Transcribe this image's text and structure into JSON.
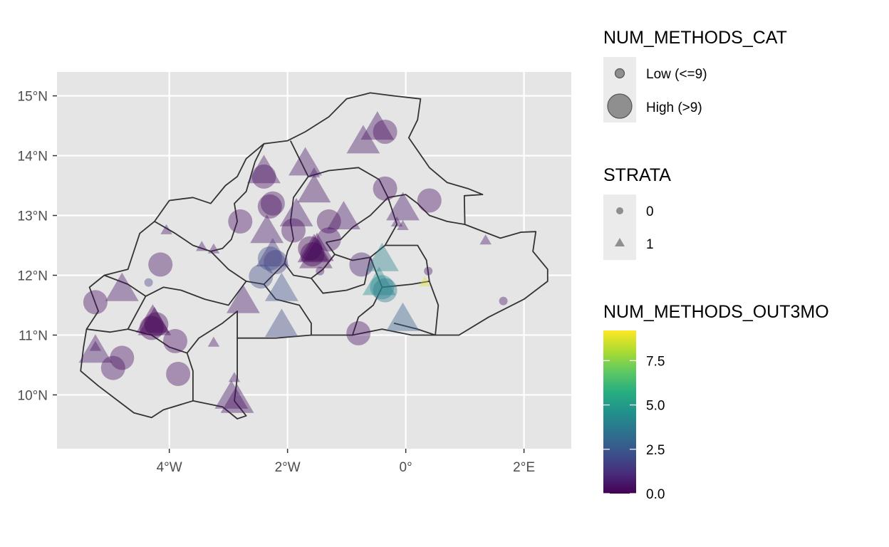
{
  "chart_data": {
    "type": "scatter",
    "panel_bg": "#e5e5e5",
    "grid_color": "#ffffff",
    "country_fill": "#e5e5e5",
    "border_color": "#333333",
    "xlim": [
      -5.9,
      2.8
    ],
    "ylim": [
      9.1,
      15.4
    ],
    "x_ticks": [
      {
        "value": -4,
        "label": "4°W"
      },
      {
        "value": -2,
        "label": "2°W"
      },
      {
        "value": 0,
        "label": "0°"
      },
      {
        "value": 2,
        "label": "2°E"
      }
    ],
    "y_ticks": [
      {
        "value": 10,
        "label": "10°N"
      },
      {
        "value": 11,
        "label": "11°N"
      },
      {
        "value": 12,
        "label": "12°N"
      },
      {
        "value": 13,
        "label": "13°N"
      },
      {
        "value": 14,
        "label": "14°N"
      },
      {
        "value": 15,
        "label": "15°N"
      }
    ],
    "country_outline": [
      [
        -0.6,
        15.05
      ],
      [
        -0.2,
        15.0
      ],
      [
        0.25,
        14.95
      ],
      [
        0.2,
        14.6
      ],
      [
        0.05,
        14.3
      ],
      [
        0.4,
        13.8
      ],
      [
        0.7,
        13.55
      ],
      [
        1.05,
        13.45
      ],
      [
        1.3,
        13.35
      ],
      [
        0.99,
        13.33
      ],
      [
        1.0,
        12.85
      ],
      [
        1.6,
        12.62
      ],
      [
        1.95,
        12.72
      ],
      [
        2.2,
        12.73
      ],
      [
        2.15,
        12.4
      ],
      [
        2.4,
        12.1
      ],
      [
        2.4,
        11.9
      ],
      [
        2.0,
        11.6
      ],
      [
        1.4,
        11.3
      ],
      [
        0.9,
        11.0
      ],
      [
        0.5,
        11.0
      ],
      [
        0.1,
        11.0
      ],
      [
        -0.4,
        11.1
      ],
      [
        -0.9,
        11.0
      ],
      [
        -1.6,
        11.0
      ],
      [
        -2.2,
        10.95
      ],
      [
        -2.85,
        10.95
      ],
      [
        -2.85,
        10.3
      ],
      [
        -2.9,
        9.9
      ],
      [
        -2.7,
        9.65
      ],
      [
        -2.85,
        9.6
      ],
      [
        -3.1,
        9.8
      ],
      [
        -3.6,
        9.9
      ],
      [
        -4.1,
        9.75
      ],
      [
        -4.3,
        9.62
      ],
      [
        -4.6,
        9.7
      ],
      [
        -4.8,
        9.85
      ],
      [
        -5.2,
        10.15
      ],
      [
        -5.5,
        10.4
      ],
      [
        -5.45,
        10.8
      ],
      [
        -5.4,
        11.1
      ],
      [
        -5.2,
        11.4
      ],
      [
        -5.35,
        11.8
      ],
      [
        -5.1,
        12.0
      ],
      [
        -4.7,
        12.1
      ],
      [
        -4.5,
        12.7
      ],
      [
        -4.25,
        12.9
      ],
      [
        -4.0,
        13.25
      ],
      [
        -3.6,
        13.3
      ],
      [
        -3.3,
        13.2
      ],
      [
        -3.05,
        13.5
      ],
      [
        -2.85,
        13.65
      ],
      [
        -2.7,
        13.95
      ],
      [
        -2.4,
        14.2
      ],
      [
        -2.0,
        14.25
      ],
      [
        -1.7,
        14.4
      ],
      [
        -1.3,
        14.65
      ],
      [
        -1.0,
        14.95
      ],
      [
        -0.6,
        15.05
      ]
    ],
    "region_borders": [
      [
        [
          -1.95,
          14.25
        ],
        [
          -1.8,
          13.95
        ],
        [
          -1.65,
          13.65
        ],
        [
          -1.9,
          13.3
        ],
        [
          -1.95,
          12.9
        ],
        [
          -1.9,
          12.6
        ]
      ],
      [
        [
          -2.4,
          14.2
        ],
        [
          -2.55,
          13.9
        ],
        [
          -2.7,
          13.4
        ],
        [
          -2.9,
          13.2
        ],
        [
          -2.85,
          12.9
        ],
        [
          -2.95,
          12.6
        ],
        [
          -3.1,
          12.45
        ],
        [
          -3.3,
          12.4
        ]
      ],
      [
        [
          -1.65,
          13.65
        ],
        [
          -1.3,
          13.75
        ],
        [
          -0.8,
          13.8
        ],
        [
          -0.45,
          13.6
        ],
        [
          -0.3,
          13.3
        ],
        [
          -0.6,
          13.0
        ],
        [
          -0.9,
          12.8
        ],
        [
          -1.1,
          12.6
        ],
        [
          -1.35,
          12.55
        ]
      ],
      [
        [
          -0.3,
          13.3
        ],
        [
          0.0,
          13.35
        ],
        [
          0.2,
          13.2
        ],
        [
          0.4,
          13.0
        ],
        [
          0.7,
          12.9
        ],
        [
          1.0,
          12.85
        ]
      ],
      [
        [
          -0.3,
          13.3
        ],
        [
          -0.15,
          12.85
        ],
        [
          -0.35,
          12.5
        ],
        [
          -0.6,
          12.3
        ],
        [
          -0.9,
          12.25
        ],
        [
          -1.2,
          12.35
        ],
        [
          -1.35,
          12.55
        ]
      ],
      [
        [
          -1.9,
          12.6
        ],
        [
          -2.0,
          12.4
        ],
        [
          -2.05,
          12.2
        ],
        [
          -1.9,
          12.0
        ],
        [
          -1.6,
          11.95
        ],
        [
          -1.4,
          12.1
        ],
        [
          -1.2,
          12.35
        ]
      ],
      [
        [
          -4.25,
          12.9
        ],
        [
          -3.9,
          12.7
        ],
        [
          -3.6,
          12.5
        ],
        [
          -3.3,
          12.4
        ],
        [
          -3.0,
          12.1
        ],
        [
          -2.7,
          11.9
        ],
        [
          -2.4,
          11.85
        ],
        [
          -2.05,
          12.2
        ]
      ],
      [
        [
          -5.1,
          12.0
        ],
        [
          -4.7,
          11.85
        ],
        [
          -4.4,
          11.65
        ],
        [
          -4.1,
          11.8
        ],
        [
          -3.8,
          11.75
        ],
        [
          -3.4,
          11.6
        ],
        [
          -3.0,
          11.5
        ],
        [
          -2.7,
          11.9
        ]
      ],
      [
        [
          -5.4,
          11.1
        ],
        [
          -5.0,
          11.05
        ],
        [
          -4.7,
          11.1
        ],
        [
          -4.4,
          11.65
        ]
      ],
      [
        [
          -4.7,
          11.1
        ],
        [
          -4.3,
          11.0
        ],
        [
          -4.0,
          10.8
        ],
        [
          -3.7,
          10.7
        ],
        [
          -3.6,
          10.4
        ],
        [
          -3.6,
          9.9
        ]
      ],
      [
        [
          -3.7,
          10.7
        ],
        [
          -3.5,
          10.95
        ],
        [
          -3.1,
          11.2
        ],
        [
          -2.85,
          11.4
        ],
        [
          -2.85,
          10.95
        ]
      ],
      [
        [
          -2.4,
          11.85
        ],
        [
          -2.2,
          11.6
        ],
        [
          -1.8,
          11.5
        ],
        [
          -1.6,
          11.2
        ],
        [
          -1.6,
          11.0
        ]
      ],
      [
        [
          -1.6,
          11.95
        ],
        [
          -1.4,
          11.7
        ],
        [
          -1.0,
          11.75
        ],
        [
          -0.7,
          11.85
        ],
        [
          -0.6,
          12.3
        ]
      ],
      [
        [
          -0.9,
          11.0
        ],
        [
          -0.8,
          11.3
        ],
        [
          -0.55,
          11.5
        ],
        [
          -0.4,
          11.8
        ],
        [
          -0.6,
          12.3
        ]
      ],
      [
        [
          -0.4,
          11.8
        ],
        [
          0.1,
          11.85
        ],
        [
          0.4,
          11.9
        ],
        [
          0.55,
          11.5
        ],
        [
          0.5,
          11.0
        ]
      ],
      [
        [
          0.4,
          11.9
        ],
        [
          0.35,
          12.25
        ],
        [
          0.2,
          12.5
        ],
        [
          -0.35,
          12.5
        ]
      ],
      [
        [
          -0.2,
          11.2
        ],
        [
          0.2,
          11.1
        ],
        [
          0.5,
          11.0
        ]
      ]
    ],
    "points": [
      {
        "x": -0.35,
        "y": 14.4,
        "size": "high",
        "shape": "circle",
        "value": 0.3
      },
      {
        "x": -0.72,
        "y": 14.22,
        "size": "high",
        "shape": "triangle",
        "value": 0.5
      },
      {
        "x": -0.48,
        "y": 14.45,
        "size": "high",
        "shape": "triangle",
        "value": 0.4
      },
      {
        "x": -1.7,
        "y": 13.85,
        "size": "high",
        "shape": "triangle",
        "value": 0.5
      },
      {
        "x": -1.55,
        "y": 13.7,
        "size": "low",
        "shape": "triangle",
        "value": 0.6
      },
      {
        "x": -2.4,
        "y": 13.65,
        "size": "high",
        "shape": "circle",
        "value": 0.3
      },
      {
        "x": -2.4,
        "y": 13.72,
        "size": "high",
        "shape": "triangle",
        "value": 0.5
      },
      {
        "x": -1.55,
        "y": 13.4,
        "size": "high",
        "shape": "triangle",
        "value": 0.4
      },
      {
        "x": -0.35,
        "y": 13.45,
        "size": "high",
        "shape": "circle",
        "value": 0.3
      },
      {
        "x": 0.4,
        "y": 13.25,
        "size": "high",
        "shape": "circle",
        "value": 0.3
      },
      {
        "x": -0.05,
        "y": 13.1,
        "size": "high",
        "shape": "triangle",
        "value": 0.5
      },
      {
        "x": -2.3,
        "y": 13.15,
        "size": "high",
        "shape": "circle",
        "value": 0.2
      },
      {
        "x": -2.25,
        "y": 13.2,
        "size": "high",
        "shape": "circle",
        "value": 0.4
      },
      {
        "x": -1.85,
        "y": 13.0,
        "size": "high",
        "shape": "triangle",
        "value": 0.5
      },
      {
        "x": -2.8,
        "y": 12.9,
        "size": "high",
        "shape": "circle",
        "value": 0.3
      },
      {
        "x": -1.05,
        "y": 12.95,
        "size": "high",
        "shape": "triangle",
        "value": 0.5
      },
      {
        "x": -1.3,
        "y": 12.9,
        "size": "high",
        "shape": "circle",
        "value": 0.2
      },
      {
        "x": -2.35,
        "y": 12.72,
        "size": "high",
        "shape": "triangle",
        "value": 0.5
      },
      {
        "x": -1.9,
        "y": 12.75,
        "size": "high",
        "shape": "circle",
        "value": 0.3
      },
      {
        "x": -1.3,
        "y": 12.6,
        "size": "high",
        "shape": "circle",
        "value": 0.4
      },
      {
        "x": -0.15,
        "y": 12.88,
        "size": "low",
        "shape": "triangle",
        "value": 0.5
      },
      {
        "x": -0.05,
        "y": 12.82,
        "size": "low",
        "shape": "triangle",
        "value": 0.5
      },
      {
        "x": -4.05,
        "y": 12.75,
        "size": "low",
        "shape": "triangle",
        "value": 0.5
      },
      {
        "x": 1.35,
        "y": 12.58,
        "size": "low",
        "shape": "triangle",
        "value": 0.5
      },
      {
        "x": -3.45,
        "y": 12.47,
        "size": "low",
        "shape": "triangle",
        "value": 0.5
      },
      {
        "x": -3.25,
        "y": 12.43,
        "size": "low",
        "shape": "triangle",
        "value": 0.5
      },
      {
        "x": -1.55,
        "y": 12.4,
        "size": "high",
        "shape": "triangle",
        "value": 0.2
      },
      {
        "x": -1.58,
        "y": 12.35,
        "size": "high",
        "shape": "circle",
        "value": 0.1
      },
      {
        "x": -1.5,
        "y": 12.42,
        "size": "high",
        "shape": "triangle",
        "value": 0.1
      },
      {
        "x": -1.62,
        "y": 12.45,
        "size": "high",
        "shape": "circle",
        "value": 0.1
      },
      {
        "x": -1.52,
        "y": 12.3,
        "size": "high",
        "shape": "triangle",
        "value": 0.2
      },
      {
        "x": -2.3,
        "y": 12.28,
        "size": "high",
        "shape": "circle",
        "value": 2.2
      },
      {
        "x": -2.25,
        "y": 12.33,
        "size": "high",
        "shape": "triangle",
        "value": 1.5
      },
      {
        "x": -2.2,
        "y": 12.22,
        "size": "high",
        "shape": "circle",
        "value": 1.8
      },
      {
        "x": -2.45,
        "y": 11.98,
        "size": "high",
        "shape": "circle",
        "value": 2.0
      },
      {
        "x": -2.1,
        "y": 11.75,
        "size": "high",
        "shape": "triangle",
        "value": 2.3
      },
      {
        "x": -4.15,
        "y": 12.18,
        "size": "high",
        "shape": "circle",
        "value": 0.4
      },
      {
        "x": -0.75,
        "y": 12.18,
        "size": "high",
        "shape": "circle",
        "value": 0.6
      },
      {
        "x": -0.4,
        "y": 12.25,
        "size": "high",
        "shape": "triangle",
        "value": 4.0
      },
      {
        "x": -0.4,
        "y": 11.8,
        "size": "high",
        "shape": "circle",
        "value": 4.2
      },
      {
        "x": -0.45,
        "y": 11.85,
        "size": "high",
        "shape": "triangle",
        "value": 4.5
      },
      {
        "x": -0.35,
        "y": 11.75,
        "size": "high",
        "shape": "circle",
        "value": 3.8
      },
      {
        "x": -1.45,
        "y": 12.07,
        "size": "low",
        "shape": "circle",
        "value": 0.5
      },
      {
        "x": 0.38,
        "y": 12.07,
        "size": "low",
        "shape": "circle",
        "value": 0.5
      },
      {
        "x": 0.32,
        "y": 11.88,
        "size": "low",
        "shape": "triangle",
        "value": 8.8
      },
      {
        "x": -4.8,
        "y": 11.75,
        "size": "high",
        "shape": "triangle",
        "value": 0.5
      },
      {
        "x": -5.25,
        "y": 11.55,
        "size": "high",
        "shape": "circle",
        "value": 0.3
      },
      {
        "x": -4.35,
        "y": 11.88,
        "size": "low",
        "shape": "circle",
        "value": 1.8
      },
      {
        "x": -2.75,
        "y": 11.55,
        "size": "high",
        "shape": "triangle",
        "value": 0.5
      },
      {
        "x": 1.65,
        "y": 11.57,
        "size": "low",
        "shape": "circle",
        "value": 0.5
      },
      {
        "x": -4.28,
        "y": 11.22,
        "size": "high",
        "shape": "triangle",
        "value": 0.0
      },
      {
        "x": -4.22,
        "y": 11.18,
        "size": "high",
        "shape": "circle",
        "value": 0.1
      },
      {
        "x": -4.3,
        "y": 11.12,
        "size": "high",
        "shape": "circle",
        "value": 0.0
      },
      {
        "x": -4.25,
        "y": 11.18,
        "size": "high",
        "shape": "triangle",
        "value": 0.1
      },
      {
        "x": -2.1,
        "y": 11.15,
        "size": "high",
        "shape": "triangle",
        "value": 2.0
      },
      {
        "x": -0.05,
        "y": 11.25,
        "size": "high",
        "shape": "triangle",
        "value": 2.8
      },
      {
        "x": -0.8,
        "y": 11.03,
        "size": "high",
        "shape": "circle",
        "value": 0.3
      },
      {
        "x": -3.9,
        "y": 10.9,
        "size": "high",
        "shape": "circle",
        "value": 0.3
      },
      {
        "x": -3.25,
        "y": 10.87,
        "size": "low",
        "shape": "triangle",
        "value": 0.5
      },
      {
        "x": -5.25,
        "y": 10.8,
        "size": "low",
        "shape": "triangle",
        "value": 0.5
      },
      {
        "x": -5.25,
        "y": 10.72,
        "size": "high",
        "shape": "triangle",
        "value": 0.5
      },
      {
        "x": -4.8,
        "y": 10.62,
        "size": "high",
        "shape": "circle",
        "value": 0.3
      },
      {
        "x": -4.95,
        "y": 10.45,
        "size": "high",
        "shape": "circle",
        "value": 0.4
      },
      {
        "x": -3.85,
        "y": 10.35,
        "size": "high",
        "shape": "circle",
        "value": 0.3
      },
      {
        "x": -2.9,
        "y": 10.28,
        "size": "low",
        "shape": "triangle",
        "value": 0.5
      },
      {
        "x": -2.95,
        "y": 9.95,
        "size": "high",
        "shape": "triangle",
        "value": 0.5
      },
      {
        "x": -2.85,
        "y": 9.88,
        "size": "high",
        "shape": "triangle",
        "value": 0.4
      }
    ],
    "legends": {
      "size": {
        "title": "NUM_METHODS_CAT",
        "entries": [
          {
            "key": "low",
            "label": "Low (<=9)"
          },
          {
            "key": "high",
            "label": "High (>9)"
          }
        ]
      },
      "shape": {
        "title": "STRATA",
        "entries": [
          {
            "key": "circle",
            "label": "0"
          },
          {
            "key": "triangle",
            "label": "1"
          }
        ]
      },
      "color": {
        "title": "NUM_METHODS_OUT3MO",
        "range": [
          0,
          9.2
        ],
        "breaks": [
          {
            "value": 0,
            "label": "0.0"
          },
          {
            "value": 2.5,
            "label": "2.5"
          },
          {
            "value": 5,
            "label": "5.0"
          },
          {
            "value": 7.5,
            "label": "7.5"
          }
        ],
        "gradient": [
          "#440154",
          "#472d7b",
          "#3b528b",
          "#2c728e",
          "#21918c",
          "#28ae80",
          "#5ec962",
          "#addc30",
          "#fde725"
        ]
      }
    }
  }
}
